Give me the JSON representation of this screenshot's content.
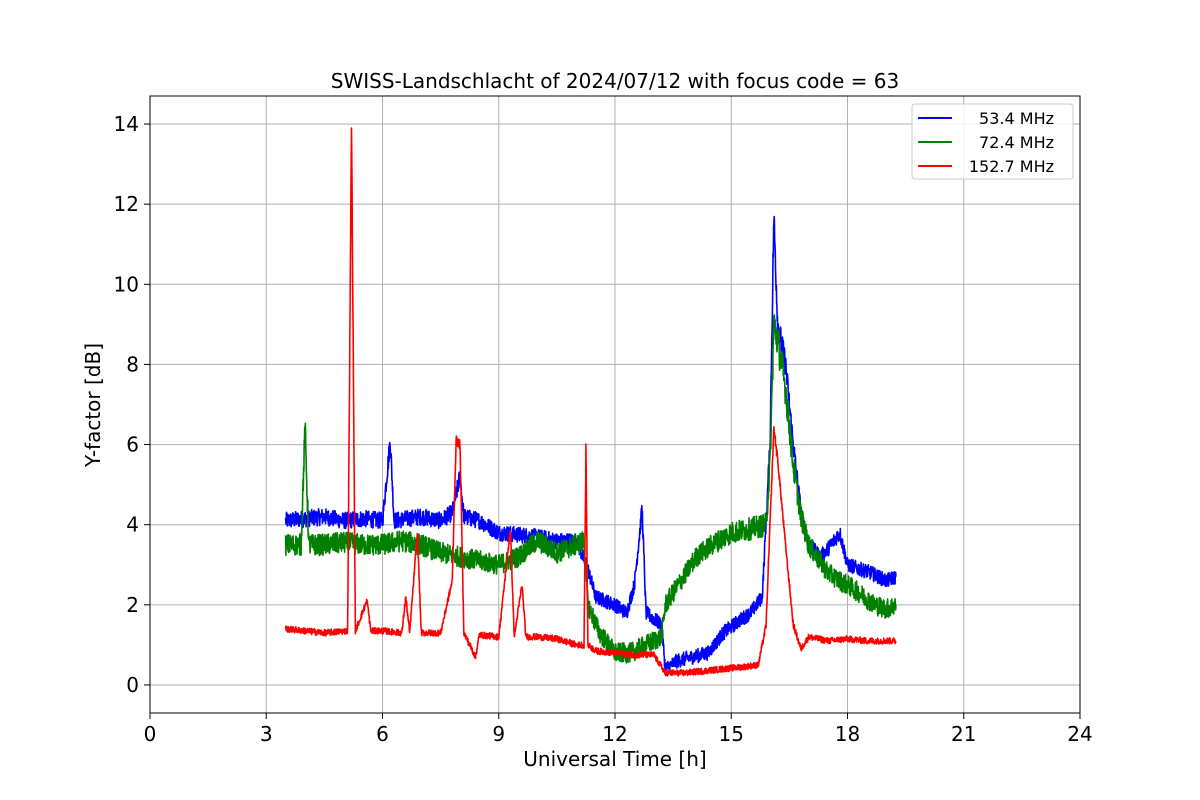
{
  "chart_data": {
    "type": "line",
    "title": "SWISS-Landschlacht of 2024/07/12 with focus code = 63",
    "xlabel": "Universal Time [h]",
    "ylabel": "Y-factor [dB]",
    "xlim": [
      0,
      24
    ],
    "ylim": [
      -0.7,
      14.7
    ],
    "xticks": [
      0,
      3,
      6,
      9,
      12,
      15,
      18,
      21,
      24
    ],
    "yticks": [
      0,
      2,
      4,
      6,
      8,
      10,
      12,
      14
    ],
    "grid": true,
    "legend_position": "top-right",
    "series": [
      {
        "name": "53.4 MHz",
        "color": "#0000ff",
        "noise": 0.18,
        "points": [
          [
            3.5,
            4.1
          ],
          [
            4.0,
            4.15
          ],
          [
            4.5,
            4.2
          ],
          [
            5.0,
            4.1
          ],
          [
            5.5,
            4.15
          ],
          [
            6.0,
            4.1
          ],
          [
            6.2,
            6.1
          ],
          [
            6.3,
            4.1
          ],
          [
            7.0,
            4.2
          ],
          [
            7.5,
            4.1
          ],
          [
            7.8,
            4.3
          ],
          [
            8.0,
            5.2
          ],
          [
            8.1,
            4.2
          ],
          [
            8.5,
            4.1
          ],
          [
            9.0,
            3.8
          ],
          [
            9.5,
            3.75
          ],
          [
            10.0,
            3.7
          ],
          [
            10.5,
            3.6
          ],
          [
            11.0,
            3.6
          ],
          [
            11.3,
            2.9
          ],
          [
            11.5,
            2.2
          ],
          [
            12.0,
            2.0
          ],
          [
            12.3,
            1.8
          ],
          [
            12.5,
            2.5
          ],
          [
            12.7,
            4.4
          ],
          [
            12.8,
            1.8
          ],
          [
            13.2,
            1.5
          ],
          [
            13.3,
            0.4
          ],
          [
            13.6,
            0.6
          ],
          [
            14.0,
            0.7
          ],
          [
            14.4,
            0.8
          ],
          [
            14.8,
            1.3
          ],
          [
            15.2,
            1.6
          ],
          [
            15.5,
            1.8
          ],
          [
            15.8,
            2.2
          ],
          [
            16.0,
            6.0
          ],
          [
            16.1,
            11.7
          ],
          [
            16.2,
            9.0
          ],
          [
            16.4,
            8.0
          ],
          [
            16.6,
            6.0
          ],
          [
            16.8,
            4.3
          ],
          [
            17.0,
            3.5
          ],
          [
            17.3,
            3.2
          ],
          [
            17.5,
            3.4
          ],
          [
            17.8,
            3.8
          ],
          [
            18.0,
            3.0
          ],
          [
            18.3,
            2.9
          ],
          [
            18.6,
            2.8
          ],
          [
            19.0,
            2.6
          ],
          [
            19.25,
            2.7
          ]
        ]
      },
      {
        "name": "72.4 MHz",
        "color": "#008000",
        "noise": 0.25,
        "points": [
          [
            3.5,
            3.5
          ],
          [
            3.9,
            3.5
          ],
          [
            4.0,
            6.4
          ],
          [
            4.1,
            3.5
          ],
          [
            4.5,
            3.5
          ],
          [
            5.0,
            3.55
          ],
          [
            5.5,
            3.5
          ],
          [
            6.0,
            3.5
          ],
          [
            6.5,
            3.6
          ],
          [
            7.0,
            3.5
          ],
          [
            7.5,
            3.3
          ],
          [
            8.0,
            3.2
          ],
          [
            8.5,
            3.1
          ],
          [
            9.0,
            3.0
          ],
          [
            9.5,
            3.2
          ],
          [
            10.0,
            3.6
          ],
          [
            10.5,
            3.3
          ],
          [
            11.0,
            3.5
          ],
          [
            11.2,
            3.6
          ],
          [
            11.3,
            2.0
          ],
          [
            11.6,
            1.3
          ],
          [
            12.0,
            0.8
          ],
          [
            12.4,
            0.8
          ],
          [
            12.8,
            1.0
          ],
          [
            13.2,
            1.2
          ],
          [
            13.3,
            2.0
          ],
          [
            13.7,
            2.6
          ],
          [
            14.1,
            3.2
          ],
          [
            14.5,
            3.5
          ],
          [
            15.0,
            3.8
          ],
          [
            15.5,
            3.9
          ],
          [
            15.9,
            4.0
          ],
          [
            16.0,
            5.5
          ],
          [
            16.1,
            9.0
          ],
          [
            16.2,
            8.6
          ],
          [
            16.4,
            7.4
          ],
          [
            16.6,
            5.5
          ],
          [
            16.8,
            4.2
          ],
          [
            17.0,
            3.5
          ],
          [
            17.2,
            3.2
          ],
          [
            17.5,
            2.8
          ],
          [
            17.8,
            2.6
          ],
          [
            18.0,
            2.5
          ],
          [
            18.3,
            2.3
          ],
          [
            18.7,
            2.0
          ],
          [
            19.0,
            1.9
          ],
          [
            19.25,
            2.0
          ]
        ]
      },
      {
        "name": "152.7 MHz",
        "color": "#ff0000",
        "noise": 0.08,
        "points": [
          [
            3.5,
            1.4
          ],
          [
            4.0,
            1.35
          ],
          [
            4.5,
            1.3
          ],
          [
            5.1,
            1.35
          ],
          [
            5.2,
            14.0
          ],
          [
            5.3,
            1.35
          ],
          [
            5.6,
            2.1
          ],
          [
            5.7,
            1.35
          ],
          [
            6.0,
            1.35
          ],
          [
            6.5,
            1.3
          ],
          [
            6.6,
            2.2
          ],
          [
            6.7,
            1.3
          ],
          [
            6.9,
            3.8
          ],
          [
            7.0,
            1.3
          ],
          [
            7.5,
            1.3
          ],
          [
            7.8,
            2.6
          ],
          [
            7.9,
            6.1
          ],
          [
            8.0,
            6.0
          ],
          [
            8.1,
            1.3
          ],
          [
            8.4,
            0.7
          ],
          [
            8.5,
            1.25
          ],
          [
            9.0,
            1.2
          ],
          [
            9.3,
            3.9
          ],
          [
            9.4,
            1.2
          ],
          [
            9.6,
            2.5
          ],
          [
            9.7,
            1.2
          ],
          [
            10.0,
            1.2
          ],
          [
            10.5,
            1.15
          ],
          [
            11.0,
            1.0
          ],
          [
            11.2,
            1.0
          ],
          [
            11.25,
            5.9
          ],
          [
            11.3,
            1.0
          ],
          [
            11.5,
            0.85
          ],
          [
            12.0,
            0.8
          ],
          [
            12.5,
            0.75
          ],
          [
            13.0,
            0.75
          ],
          [
            13.3,
            0.3
          ],
          [
            13.8,
            0.3
          ],
          [
            14.3,
            0.35
          ],
          [
            14.8,
            0.4
          ],
          [
            15.3,
            0.45
          ],
          [
            15.7,
            0.5
          ],
          [
            15.9,
            1.5
          ],
          [
            16.0,
            4.0
          ],
          [
            16.1,
            6.4
          ],
          [
            16.2,
            5.6
          ],
          [
            16.4,
            3.5
          ],
          [
            16.6,
            1.5
          ],
          [
            16.8,
            0.9
          ],
          [
            17.0,
            1.2
          ],
          [
            17.5,
            1.1
          ],
          [
            18.0,
            1.15
          ],
          [
            18.5,
            1.1
          ],
          [
            19.0,
            1.1
          ],
          [
            19.25,
            1.1
          ]
        ]
      }
    ]
  }
}
